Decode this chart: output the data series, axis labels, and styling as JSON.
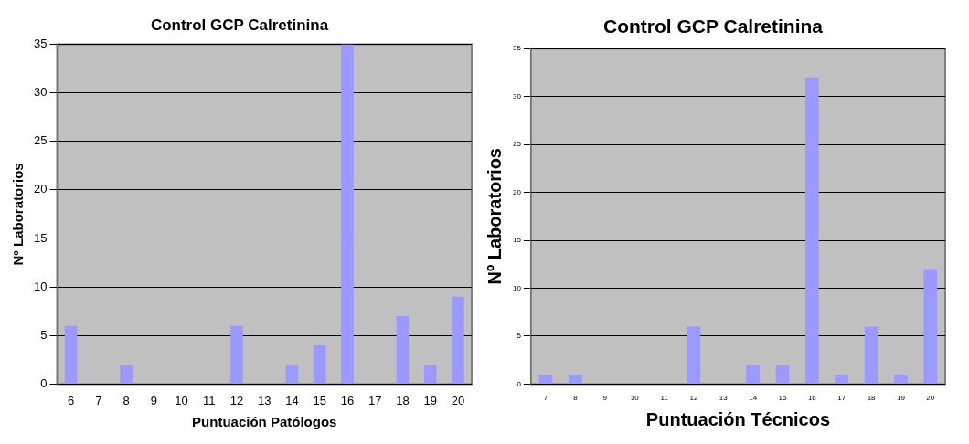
{
  "chart_data": [
    {
      "type": "bar",
      "title": "Control GCP Calretinina",
      "xlabel": "Puntuación Patólogos",
      "ylabel": "Nº Laboratorios",
      "categories": [
        "6",
        "7",
        "8",
        "9",
        "10",
        "11",
        "12",
        "13",
        "14",
        "15",
        "16",
        "17",
        "18",
        "19",
        "20"
      ],
      "values": [
        6,
        0,
        2,
        0,
        0,
        0,
        6,
        0,
        2,
        4,
        35,
        0,
        7,
        2,
        9
      ],
      "color": "#9999ff",
      "ylim": [
        0,
        35
      ],
      "yticks": [
        0,
        5,
        10,
        15,
        20,
        25,
        30,
        35
      ],
      "grid": "y"
    },
    {
      "type": "bar",
      "title": "Control GCP Calretinina",
      "xlabel": "Puntuación Técnicos",
      "ylabel": "Nº Laboratorios",
      "categories": [
        "7",
        "8",
        "9",
        "10",
        "11",
        "12",
        "13",
        "14",
        "15",
        "16",
        "17",
        "18",
        "19",
        "20"
      ],
      "values": [
        1,
        1,
        0,
        0,
        0,
        6,
        0,
        2,
        2,
        32,
        1,
        6,
        1,
        12
      ],
      "color": "#9999ff",
      "ylim": [
        0,
        35
      ],
      "yticks": [
        0,
        5,
        10,
        15,
        20,
        25,
        30,
        35
      ],
      "grid": "y"
    }
  ]
}
